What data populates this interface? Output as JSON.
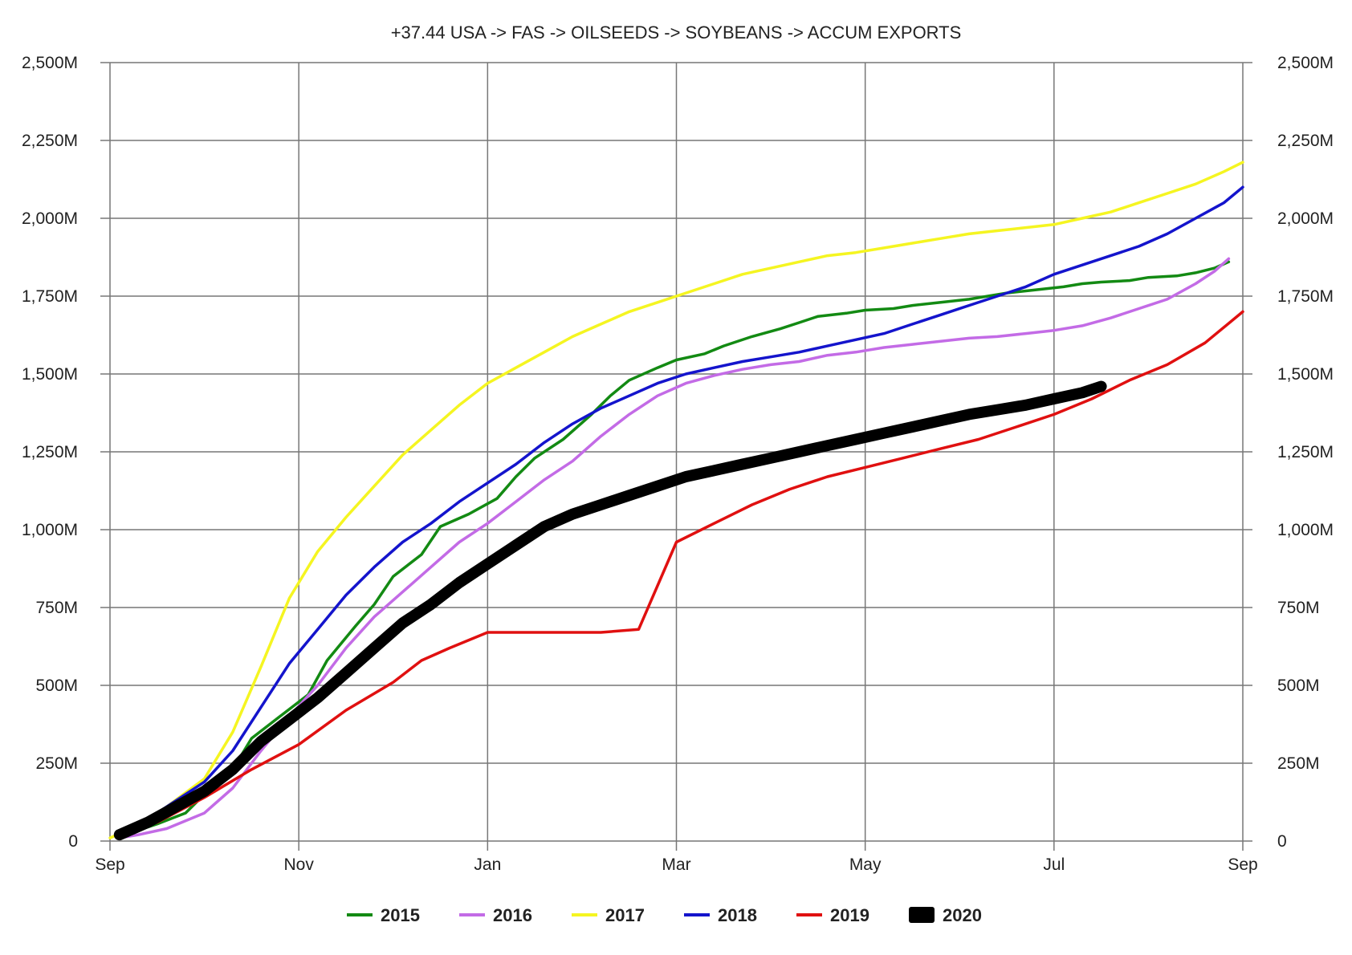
{
  "chart_data": {
    "type": "line",
    "title": "+37.44 USA -> FAS -> OILSEEDS -> SOYBEANS -> ACCUM EXPORTS",
    "x_ticks": [
      "Sep",
      "Nov",
      "Jan",
      "Mar",
      "May",
      "Jul",
      "Sep"
    ],
    "y_ticks": [
      "0",
      "250M",
      "500M",
      "750M",
      "1,000M",
      "1,250M",
      "1,500M",
      "1,750M",
      "2,000M",
      "2,250M",
      "2,500M"
    ],
    "y_tick_values": [
      0,
      250,
      500,
      750,
      1000,
      1250,
      1500,
      1750,
      2000,
      2250,
      2500
    ],
    "ylim": [
      0,
      2500
    ],
    "x_unit": "months since Sep 1 (marketing year)",
    "xlim": [
      0,
      12
    ],
    "ylabel": "",
    "xlabel": "",
    "grid": true,
    "legend_position": "bottom",
    "series": [
      {
        "name": "2015",
        "color": "#138a13",
        "width": 3.5,
        "x": [
          0.1,
          0.3,
          0.5,
          0.8,
          1.0,
          1.3,
          1.5,
          1.8,
          2.1,
          2.3,
          2.6,
          2.8,
          3.0,
          3.3,
          3.5,
          3.8,
          4.1,
          4.3,
          4.5,
          4.8,
          5.1,
          5.3,
          5.5,
          5.8,
          6.0,
          6.3,
          6.5,
          6.8,
          7.1,
          7.3,
          7.5,
          7.8,
          8.0,
          8.3,
          8.5,
          8.8,
          9.1,
          9.3,
          9.5,
          9.8,
          10.1,
          10.3,
          10.5,
          10.8,
          11.0,
          11.3,
          11.5,
          11.7,
          11.85
        ],
        "y": [
          20,
          35,
          55,
          90,
          150,
          230,
          330,
          400,
          470,
          580,
          690,
          760,
          850,
          920,
          1010,
          1050,
          1100,
          1170,
          1230,
          1290,
          1370,
          1430,
          1480,
          1520,
          1545,
          1565,
          1590,
          1620,
          1645,
          1665,
          1685,
          1695,
          1705,
          1710,
          1720,
          1730,
          1740,
          1750,
          1760,
          1770,
          1780,
          1790,
          1795,
          1800,
          1810,
          1815,
          1825,
          1840,
          1860
        ]
      },
      {
        "name": "2016",
        "color": "#c36be6",
        "width": 3.5,
        "x": [
          0.1,
          0.3,
          0.6,
          1.0,
          1.3,
          1.6,
          1.9,
          2.2,
          2.5,
          2.8,
          3.1,
          3.4,
          3.7,
          4.0,
          4.3,
          4.6,
          4.9,
          5.2,
          5.5,
          5.8,
          6.1,
          6.4,
          6.7,
          7.0,
          7.3,
          7.6,
          7.9,
          8.2,
          8.5,
          8.8,
          9.1,
          9.4,
          9.7,
          10.0,
          10.3,
          10.6,
          10.9,
          11.2,
          11.5,
          11.7,
          11.85
        ],
        "y": [
          10,
          20,
          40,
          90,
          170,
          290,
          400,
          500,
          620,
          720,
          800,
          880,
          960,
          1020,
          1090,
          1160,
          1220,
          1300,
          1370,
          1430,
          1470,
          1495,
          1515,
          1530,
          1540,
          1560,
          1570,
          1585,
          1595,
          1605,
          1615,
          1620,
          1630,
          1640,
          1655,
          1680,
          1710,
          1740,
          1790,
          1830,
          1870
        ]
      },
      {
        "name": "2017",
        "color": "#f5f521",
        "width": 3.5,
        "x": [
          0.0,
          0.3,
          0.6,
          1.0,
          1.3,
          1.6,
          1.9,
          2.2,
          2.5,
          2.8,
          3.1,
          3.4,
          3.7,
          4.0,
          4.3,
          4.6,
          4.9,
          5.2,
          5.5,
          5.8,
          6.1,
          6.4,
          6.7,
          7.0,
          7.3,
          7.6,
          7.9,
          8.2,
          8.5,
          8.8,
          9.1,
          9.4,
          9.7,
          10.0,
          10.3,
          10.6,
          10.9,
          11.2,
          11.5,
          11.8,
          12.0
        ],
        "y": [
          10,
          50,
          110,
          200,
          350,
          560,
          780,
          930,
          1040,
          1140,
          1240,
          1320,
          1400,
          1470,
          1520,
          1570,
          1620,
          1660,
          1700,
          1730,
          1760,
          1790,
          1820,
          1840,
          1860,
          1880,
          1890,
          1905,
          1920,
          1935,
          1950,
          1960,
          1970,
          1980,
          2000,
          2020,
          2050,
          2080,
          2110,
          2150,
          2180
        ]
      },
      {
        "name": "2018",
        "color": "#1414cc",
        "width": 3.5,
        "x": [
          0.1,
          0.4,
          0.7,
          1.0,
          1.3,
          1.6,
          1.9,
          2.2,
          2.5,
          2.8,
          3.1,
          3.4,
          3.7,
          4.0,
          4.3,
          4.6,
          4.9,
          5.2,
          5.5,
          5.8,
          6.1,
          6.4,
          6.7,
          7.0,
          7.3,
          7.6,
          7.9,
          8.2,
          8.5,
          8.8,
          9.1,
          9.4,
          9.7,
          10.0,
          10.3,
          10.6,
          10.9,
          11.2,
          11.5,
          11.8,
          12.0
        ],
        "y": [
          20,
          70,
          130,
          190,
          290,
          430,
          570,
          680,
          790,
          880,
          960,
          1020,
          1090,
          1150,
          1210,
          1280,
          1340,
          1390,
          1430,
          1470,
          1500,
          1520,
          1540,
          1555,
          1570,
          1590,
          1610,
          1630,
          1660,
          1690,
          1720,
          1750,
          1780,
          1820,
          1850,
          1880,
          1910,
          1950,
          2000,
          2050,
          2100
        ]
      },
      {
        "name": "2019",
        "color": "#e01010",
        "width": 3.5,
        "x": [
          0.1,
          0.5,
          1.0,
          1.5,
          2.0,
          2.5,
          3.0,
          3.3,
          3.6,
          4.0,
          4.4,
          4.8,
          5.2,
          5.6,
          6.0,
          6.4,
          6.8,
          7.2,
          7.6,
          8.0,
          8.4,
          8.8,
          9.2,
          9.6,
          10.0,
          10.4,
          10.8,
          11.2,
          11.6,
          12.0
        ],
        "y": [
          20,
          60,
          140,
          230,
          310,
          420,
          510,
          580,
          620,
          670,
          670,
          670,
          670,
          680,
          960,
          1020,
          1080,
          1130,
          1170,
          1200,
          1230,
          1260,
          1290,
          1330,
          1370,
          1420,
          1480,
          1530,
          1600,
          1700
        ]
      },
      {
        "name": "2020",
        "color": "#000000",
        "width": 14,
        "x": [
          0.1,
          0.4,
          0.7,
          1.0,
          1.3,
          1.6,
          1.9,
          2.2,
          2.5,
          2.8,
          3.1,
          3.4,
          3.7,
          4.0,
          4.3,
          4.6,
          4.9,
          5.2,
          5.5,
          5.8,
          6.1,
          6.4,
          6.7,
          7.0,
          7.3,
          7.6,
          7.9,
          8.2,
          8.5,
          8.8,
          9.1,
          9.4,
          9.7,
          10.0,
          10.3,
          10.5
        ],
        "y": [
          20,
          60,
          110,
          160,
          230,
          320,
          390,
          460,
          540,
          620,
          700,
          760,
          830,
          890,
          950,
          1010,
          1050,
          1080,
          1110,
          1140,
          1170,
          1190,
          1210,
          1230,
          1250,
          1270,
          1290,
          1310,
          1330,
          1350,
          1370,
          1385,
          1400,
          1420,
          1440,
          1460
        ]
      }
    ]
  }
}
